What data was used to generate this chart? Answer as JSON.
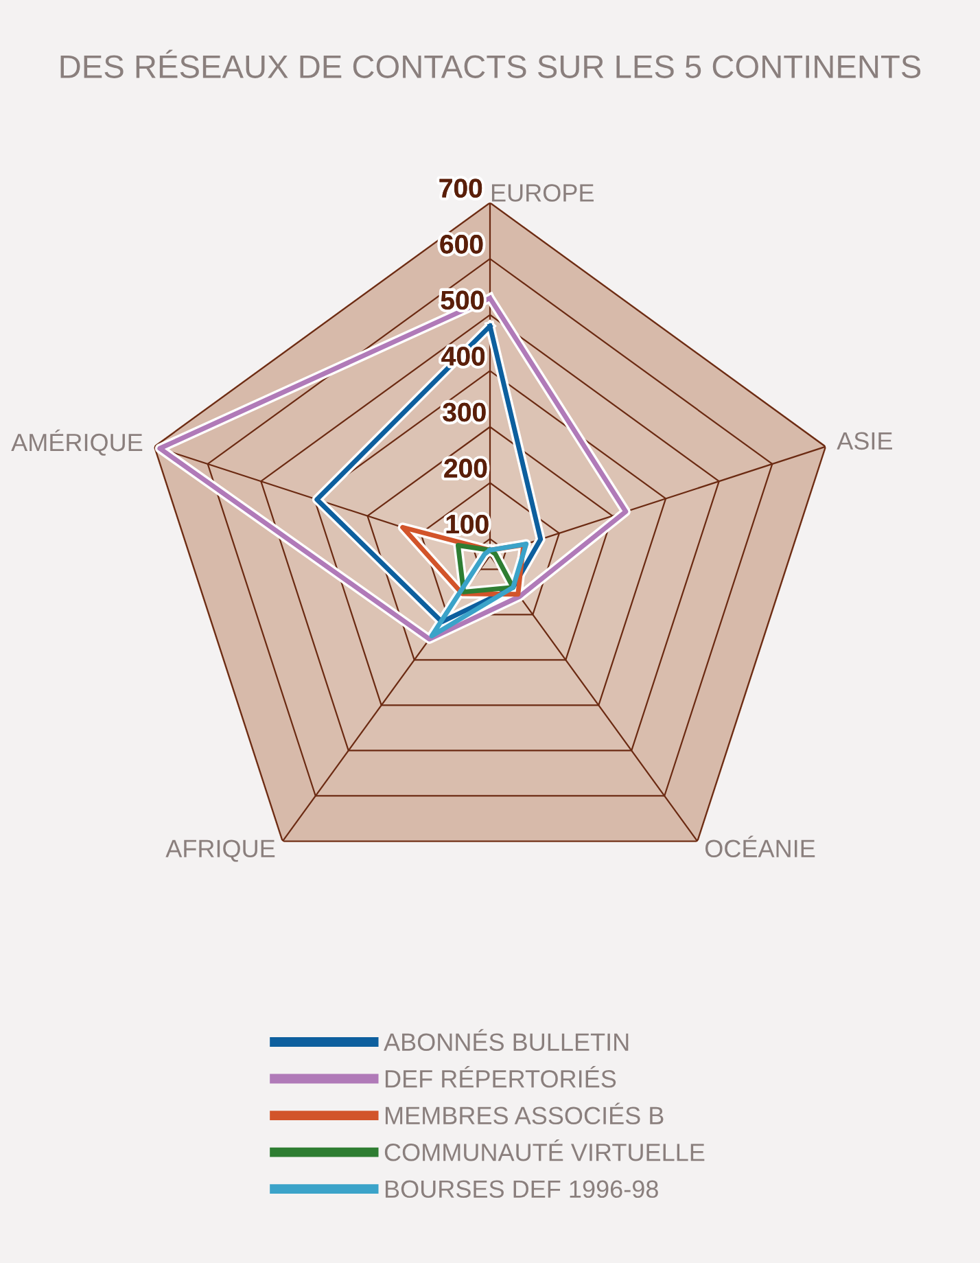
{
  "chart_data": {
    "type": "radar",
    "title": "DES RÉSEAUX DE CONTACTS SUR LES 5 CONTINENTS",
    "categories": [
      "EUROPE",
      "ASIE",
      "OCÉANIE",
      "AFRIQUE",
      "AMÉRIQUE"
    ],
    "ylim": [
      70,
      700
    ],
    "yticks": [
      100,
      200,
      300,
      400,
      500,
      600,
      700
    ],
    "grid": true,
    "legend": "bottom",
    "marker": "none",
    "line_style": "solid",
    "series": [
      {
        "name": "ABONNÉS BULLETIN",
        "color": "#0d5f9e",
        "values": [
          480,
          165,
          140,
          216,
          395
        ]
      },
      {
        "name": "DEF RÉPERTORIÉS",
        "color": "#b07ab8",
        "values": [
          530,
          325,
          160,
          254,
          690
        ]
      },
      {
        "name": "MEMBRES ASSOCIÉS B",
        "color": "#d2542a",
        "values": [
          80,
          133,
          155,
          154,
          234
        ]
      },
      {
        "name": "COMMUNAUTÉ VIRTUELLE",
        "color": "#2e7d32",
        "values": [
          80,
          80,
          140,
          150,
          130
        ]
      },
      {
        "name": "BOURSES DEF 1996-98",
        "color": "#3ba3c9",
        "values": [
          80,
          138,
          140,
          247,
          80
        ]
      }
    ]
  }
}
